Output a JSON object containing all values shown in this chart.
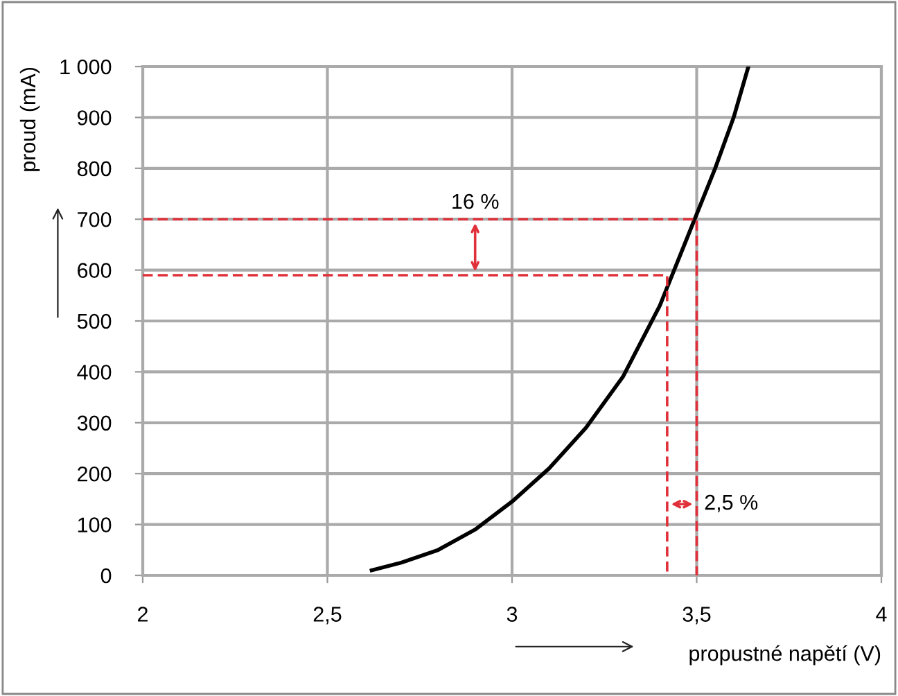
{
  "chart_data": {
    "type": "line",
    "xlabel": "propustné napětí (V)",
    "ylabel": "proud (mA)",
    "series": [
      {
        "color": "#000000",
        "x": [
          2.62,
          2.7,
          2.8,
          2.9,
          3.0,
          3.1,
          3.2,
          3.3,
          3.4,
          3.45,
          3.5,
          3.55,
          3.6,
          3.64
        ],
        "values": [
          10,
          25,
          50,
          90,
          145,
          210,
          290,
          390,
          530,
          620,
          710,
          800,
          900,
          1000
        ],
        "line_style": "solid"
      },
      {
        "color": "#e0303a",
        "x": [
          2,
          3.5,
          3.5
        ],
        "values": [
          700,
          700,
          0
        ],
        "line_style": "dashed"
      },
      {
        "color": "#e0303a",
        "x": [
          2,
          3.42,
          3.42
        ],
        "values": [
          590,
          590,
          0
        ],
        "line_style": "dashed"
      }
    ],
    "annotations": [
      {
        "text": "16 %",
        "x": 2.9,
        "y": 700
      },
      {
        "text": "2,5 %",
        "x": 3.5,
        "y": 140
      }
    ],
    "xlim": [
      2,
      4
    ],
    "ylim": [
      0,
      1000
    ],
    "xticks": [
      2,
      {
        "value": 2.5,
        "label": "2,5"
      },
      3,
      {
        "value": 3.5,
        "label": "3,5"
      },
      4
    ],
    "yticks": [
      0,
      100,
      200,
      300,
      400,
      500,
      600,
      700,
      800,
      900,
      {
        "value": 1000,
        "label": "1 000"
      }
    ],
    "grid": true,
    "marker": "none"
  }
}
